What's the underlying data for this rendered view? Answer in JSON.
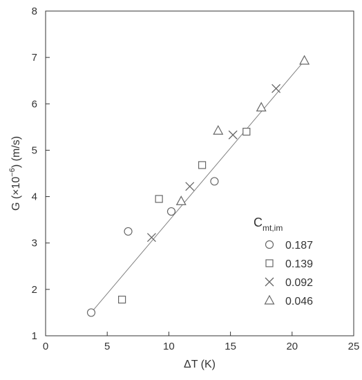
{
  "chart_data": {
    "type": "scatter",
    "xlabel": "ΔT (K)",
    "ylabel_parts": {
      "pre": "G (×10",
      "exp": "−6",
      "post": ") (m/s)"
    },
    "xlim": [
      0,
      25
    ],
    "ylim": [
      1,
      8
    ],
    "xticks": [
      "0",
      "5",
      "10",
      "15",
      "20",
      "25"
    ],
    "yticks": [
      "1",
      "2",
      "3",
      "4",
      "5",
      "6",
      "7",
      "8"
    ],
    "grid": false,
    "legend": {
      "title_main": "C",
      "title_sub": "mt,im",
      "placement": "bottom-right"
    },
    "series": [
      {
        "name": "0.187",
        "marker": "circle",
        "points": [
          [
            3.7,
            1.5
          ],
          [
            6.7,
            3.25
          ],
          [
            10.2,
            3.68
          ],
          [
            13.7,
            4.33
          ]
        ]
      },
      {
        "name": "0.139",
        "marker": "square",
        "points": [
          [
            6.2,
            1.78
          ],
          [
            9.2,
            3.95
          ],
          [
            12.7,
            4.68
          ],
          [
            16.3,
            5.4
          ]
        ]
      },
      {
        "name": "0.092",
        "marker": "x",
        "points": [
          [
            8.6,
            3.12
          ],
          [
            11.7,
            4.22
          ],
          [
            15.2,
            5.33
          ],
          [
            18.7,
            6.33
          ]
        ]
      },
      {
        "name": "0.046",
        "marker": "triangle",
        "points": [
          [
            11.0,
            3.9
          ],
          [
            14.0,
            5.42
          ],
          [
            17.5,
            5.92
          ],
          [
            21.0,
            6.93
          ]
        ]
      }
    ],
    "fit_line": {
      "x": [
        3.7,
        21.0
      ],
      "y": [
        1.5,
        6.93
      ]
    },
    "colors": {
      "axis": "#333333",
      "marker": "#666666",
      "line": "#808080"
    }
  }
}
